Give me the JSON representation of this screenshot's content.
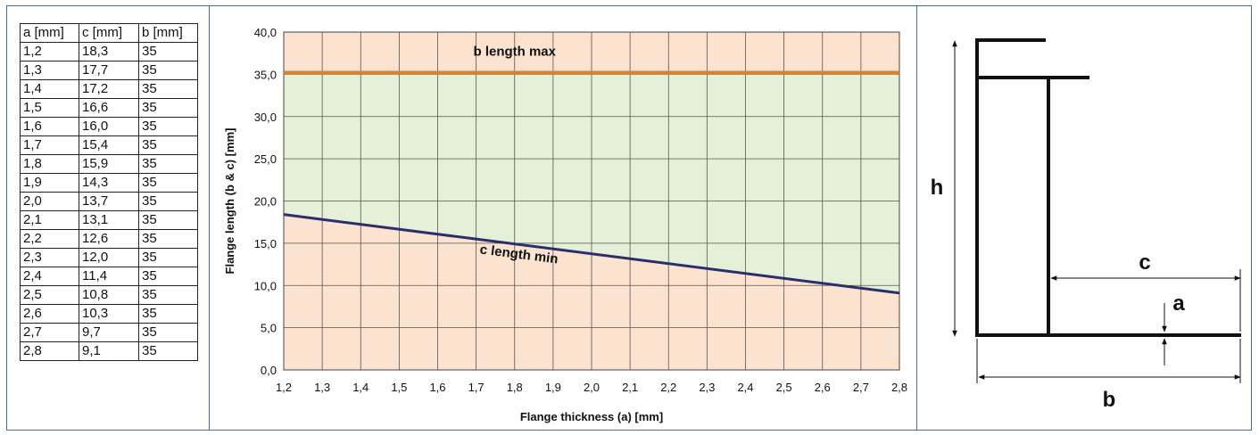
{
  "table": {
    "headers": [
      "a [mm]",
      "c [mm]",
      "b [mm]"
    ],
    "rows": [
      [
        "1,2",
        "18,3",
        "35"
      ],
      [
        "1,3",
        "17,7",
        "35"
      ],
      [
        "1,4",
        "17,2",
        "35"
      ],
      [
        "1,5",
        "16,6",
        "35"
      ],
      [
        "1,6",
        "16,0",
        "35"
      ],
      [
        "1,7",
        "15,4",
        "35"
      ],
      [
        "1,8",
        "15,9",
        "35"
      ],
      [
        "1,9",
        "14,3",
        "35"
      ],
      [
        "2,0",
        "13,7",
        "35"
      ],
      [
        "2,1",
        "13,1",
        "35"
      ],
      [
        "2,2",
        "12,6",
        "35"
      ],
      [
        "2,3",
        "12,0",
        "35"
      ],
      [
        "2,4",
        "11,4",
        "35"
      ],
      [
        "2,5",
        "10,8",
        "35"
      ],
      [
        "2,6",
        "10,3",
        "35"
      ],
      [
        "2,7",
        "9,7",
        "35"
      ],
      [
        "2,8",
        "9,1",
        "35"
      ]
    ]
  },
  "chart_data": {
    "type": "line",
    "xlabel": "Flange thickness (a) [mm]",
    "ylabel": "Flange length (b & c) [mm]",
    "xlim": [
      1.2,
      2.8
    ],
    "ylim": [
      0,
      40
    ],
    "x_ticks": [
      "1,2",
      "1,3",
      "1,4",
      "1,5",
      "1,6",
      "1,7",
      "1,8",
      "1,9",
      "2,0",
      "2,1",
      "2,2",
      "2,3",
      "2,4",
      "2,5",
      "2,6",
      "2,7",
      "2,8"
    ],
    "y_ticks": [
      "0,0",
      "5,0",
      "10,0",
      "15,0",
      "20,0",
      "25,0",
      "30,0",
      "35,0",
      "40,0"
    ],
    "grid": true,
    "series": [
      {
        "name": "b length max",
        "color": "#d8822a",
        "x": [
          1.2,
          2.8
        ],
        "y": [
          35.2,
          35.2
        ]
      },
      {
        "name": "c length min",
        "color": "#2b2e6b",
        "x": [
          1.2,
          2.8
        ],
        "y": [
          18.4,
          9.1
        ]
      }
    ],
    "regions": {
      "outside_color": "#fbe3cf",
      "valid_color": "#e5f0d8"
    }
  },
  "diagram": {
    "labels": {
      "h": "h",
      "c": "c",
      "a": "a",
      "b": "b"
    }
  }
}
